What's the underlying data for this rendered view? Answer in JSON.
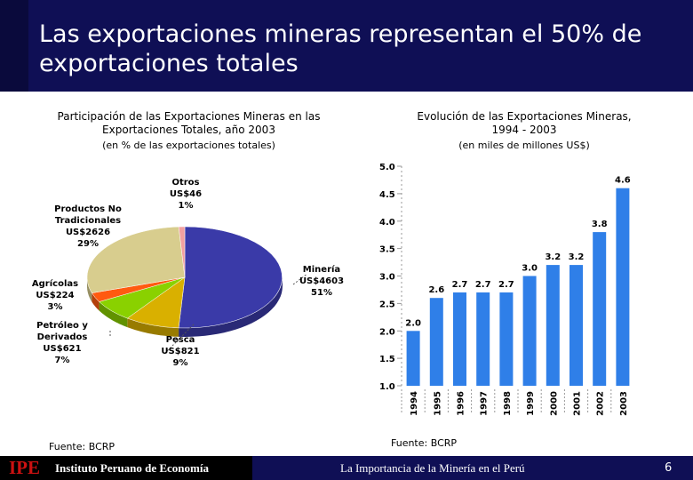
{
  "slide": {
    "title": "Las exportaciones mineras representan el 50% de exportaciones totales",
    "footer": {
      "logo": "IPE",
      "org": "Instituto Peruano de Economía",
      "caption": "La Importancia de la Minería en el Perú",
      "page": "6"
    }
  },
  "chart_data": [
    {
      "type": "pie",
      "title": "Participación de las Exportaciones Mineras en las Exportaciones Totales, año 2003",
      "title_line1": "Participación de las Exportaciones Mineras en las",
      "title_line2": "Exportaciones Totales, año 2003",
      "subtitle": "(en % de las exportaciones totales)",
      "source": "Fuente: BCRP",
      "slices": [
        {
          "name": "Minería",
          "amount": "US$4603",
          "percent": 51,
          "percent_label": "51%",
          "color": "#3a3aa8"
        },
        {
          "name": "Pesca",
          "amount": "US$821",
          "percent": 9,
          "percent_label": "9%",
          "color": "#d9b000"
        },
        {
          "name": "Petróleo y Derivados",
          "name_line1": "Petróleo y",
          "name_line2": "Derivados",
          "amount": "US$621",
          "percent": 7,
          "percent_label": "7%",
          "color": "#8ad100"
        },
        {
          "name": "Agrícolas",
          "amount": "US$224",
          "percent": 3,
          "percent_label": "3%",
          "color": "#ff5a10"
        },
        {
          "name": "Productos No Tradicionales",
          "name_line1": "Productos No",
          "name_line2": "Tradicionales",
          "amount": "US$2626",
          "percent": 29,
          "percent_label": "29%",
          "color": "#d8cd8e"
        },
        {
          "name": "Otros",
          "amount": "US$46",
          "percent": 1,
          "percent_label": "1%",
          "color": "#f2a0a0"
        }
      ]
    },
    {
      "type": "bar",
      "title": "Evolución de las Exportaciones Mineras, 1994 - 2003",
      "title_line1": "Evolución de las Exportaciones Mineras,",
      "title_line2": "1994 - 2003",
      "subtitle": "(en miles de millones US$)",
      "source": "Fuente: BCRP",
      "categories": [
        "1994",
        "1995",
        "1996",
        "1997",
        "1998",
        "1999",
        "2000",
        "2001",
        "2002",
        "2003"
      ],
      "values": [
        2.0,
        2.6,
        2.7,
        2.7,
        2.7,
        3.0,
        3.2,
        3.2,
        3.8,
        4.6
      ],
      "value_labels": [
        "2.0",
        "2.6",
        "2.7",
        "2.7",
        "2.7",
        "3.0",
        "3.2",
        "3.2",
        "3.8",
        "4.6"
      ],
      "ylim": [
        1.0,
        5.0
      ],
      "yticks": [
        "1.0",
        "1.5",
        "2.0",
        "2.5",
        "3.0",
        "3.5",
        "4.0",
        "4.5",
        "5.0"
      ],
      "bar_color": "#2f7fe8"
    }
  ]
}
